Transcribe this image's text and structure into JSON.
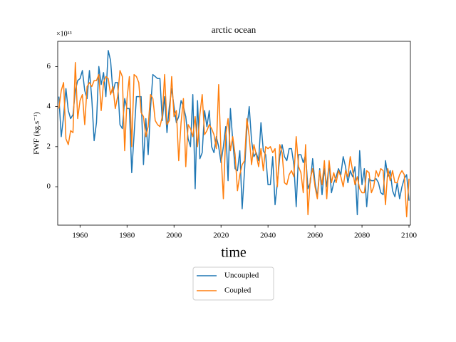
{
  "chart_data": {
    "type": "line",
    "title": "arctic ocean",
    "xlabel": "time",
    "ylabel": "FWF (kg.s⁻¹)",
    "y_offset_label": "×10¹³",
    "x": [
      1951,
      1952,
      1953,
      1954,
      1955,
      1956,
      1957,
      1958,
      1959,
      1960,
      1961,
      1962,
      1963,
      1964,
      1965,
      1966,
      1967,
      1968,
      1969,
      1970,
      1971,
      1972,
      1973,
      1974,
      1975,
      1976,
      1977,
      1978,
      1979,
      1980,
      1981,
      1982,
      1983,
      1984,
      1985,
      1986,
      1987,
      1988,
      1989,
      1990,
      1991,
      1992,
      1993,
      1994,
      1995,
      1996,
      1997,
      1998,
      1999,
      2000,
      2001,
      2002,
      2003,
      2004,
      2005,
      2006,
      2007,
      2008,
      2009,
      2010,
      2011,
      2012,
      2013,
      2014,
      2015,
      2016,
      2017,
      2018,
      2019,
      2020,
      2021,
      2022,
      2023,
      2024,
      2025,
      2026,
      2027,
      2028,
      2029,
      2030,
      2031,
      2032,
      2033,
      2034,
      2035,
      2036,
      2037,
      2038,
      2039,
      2040,
      2041,
      2042,
      2043,
      2044,
      2045,
      2046,
      2047,
      2048,
      2049,
      2050,
      2051,
      2052,
      2053,
      2054,
      2055,
      2056,
      2057,
      2058,
      2059,
      2060,
      2061,
      2062,
      2063,
      2064,
      2065,
      2066,
      2067,
      2068,
      2069,
      2070,
      2071,
      2072,
      2073,
      2074,
      2075,
      2076,
      2077,
      2078,
      2079,
      2080,
      2081,
      2082,
      2083,
      2084,
      2085,
      2086,
      2087,
      2088,
      2089,
      2090,
      2091,
      2092,
      2093,
      2094,
      2095,
      2096,
      2097,
      2098,
      2099,
      2100
    ],
    "series": [
      {
        "name": "Uncoupled",
        "color": "#1f77b4",
        "values": [
          4.5,
          2.5,
          3.5,
          4.9,
          3.8,
          3.4,
          3.6,
          4.8,
          5.3,
          5.4,
          5.8,
          4.8,
          4.4,
          5.8,
          4.4,
          2.3,
          3.2,
          6.0,
          5.1,
          5.7,
          4.5,
          6.8,
          6.3,
          4.7,
          5.2,
          5.2,
          3.1,
          2.9,
          4.4,
          3.9,
          3.9,
          0.7,
          2.6,
          4.5,
          4.5,
          4.5,
          1.1,
          3.4,
          1.6,
          3.9,
          5.6,
          5.5,
          5.4,
          5.4,
          3.3,
          4.5,
          2.7,
          4.0,
          4.9,
          4.0,
          3.2,
          3.5,
          4.3,
          4.0,
          3.5,
          2.4,
          2.0,
          4.6,
          -0.1,
          4.3,
          1.4,
          1.7,
          3.8,
          3.0,
          3.8,
          2.0,
          1.7,
          2.5,
          2.0,
          1.2,
          2.0,
          3.0,
          0.3,
          3.9,
          2.3,
          0.9,
          0.8,
          1.8,
          -1.1,
          0.8,
          2.9,
          4.0,
          2.3,
          1.5,
          1.7,
          1.3,
          3.2,
          1.8,
          1.6,
          0.1,
          0.1,
          1.5,
          -0.9,
          0.2,
          1.5,
          2.1,
          1.5,
          1.3,
          1.9,
          1.9,
          1.1,
          -1.0,
          1.6,
          1.6,
          1.2,
          1.6,
          -0.1,
          0.2,
          1.4,
          0.2,
          -0.5,
          0.9,
          -0.4,
          0.9,
          0.0,
          1.2,
          -0.3,
          0.2,
          0.5,
          0.9,
          0.6,
          1.5,
          1.0,
          0.2,
          0.8,
          0.5,
          1.0,
          -1.4,
          1.8,
          0.1,
          0.9,
          -1.0,
          0.4,
          0.3,
          0.3,
          0.4,
          0.2,
          -0.3,
          -0.4,
          1.3,
          0.5,
          0.8,
          -0.2,
          -0.5,
          0.2,
          -0.6,
          0.0,
          0.4,
          0.6,
          -0.7
        ]
      },
      {
        "name": "Coupled",
        "color": "#ff7f0e",
        "values": [
          3.9,
          4.8,
          5.2,
          2.4,
          2.1,
          2.8,
          2.7,
          6.2,
          3.4,
          4.3,
          4.6,
          3.1,
          5.0,
          5.2,
          5.0,
          5.3,
          5.3,
          5.6,
          3.8,
          5.2,
          5.5,
          5.4,
          4.6,
          5.0,
          3.9,
          4.5,
          5.8,
          5.5,
          1.8,
          4.4,
          5.5,
          2.0,
          5.6,
          5.5,
          5.2,
          3.7,
          3.5,
          2.5,
          3.0,
          4.6,
          4.4,
          3.3,
          3.1,
          3.0,
          3.5,
          5.6,
          3.1,
          3.3,
          5.5,
          3.5,
          3.8,
          1.3,
          3.2,
          4.4,
          1.0,
          3.1,
          2.9,
          2.5,
          3.5,
          2.0,
          3.6,
          4.6,
          2.6,
          2.8,
          3.1,
          2.9,
          2.6,
          1.9,
          5.1,
          1.7,
          -0.6,
          2.6,
          3.4,
          1.8,
          2.5,
          1.6,
          -0.2,
          0.6,
          1.1,
          1.3,
          3.4,
          2.5,
          1.1,
          2.1,
          1.6,
          1.0,
          1.9,
          0.8,
          2.0,
          1.9,
          2.0,
          1.7,
          1.9,
          0.0,
          2.1,
          1.7,
          0.2,
          0.1,
          0.6,
          0.8,
          0.5,
          2.5,
          1.0,
          0.7,
          -0.3,
          2.1,
          -1.4,
          0.4,
          0.9,
          0.0,
          -0.6,
          0.8,
          0.1,
          1.3,
          -0.6,
          1.3,
          0.2,
          0.7,
          0.2,
          0.8,
          0.5,
          0.0,
          0.8,
          0.5,
          1.5,
          0.8,
          0.1,
          0.5,
          -0.1,
          -0.3,
          -0.3,
          0.8,
          0.7,
          -0.3,
          0.0,
          0.8,
          0.5,
          0.9,
          0.8,
          -0.9,
          0.9,
          0.3,
          0.8,
          0.2,
          0.2,
          0.6,
          0.8,
          0.6,
          -1.5,
          0.4
        ]
      }
    ],
    "xlim": [
      1950.5,
      2100.6
    ],
    "xticks": [
      1960,
      1980,
      2000,
      2020,
      2040,
      2060,
      2080,
      2100
    ],
    "ylim": [
      -1.92,
      7.26
    ],
    "yticks": [
      0,
      2,
      4,
      6
    ],
    "grid": false,
    "legend": "lower center outside"
  }
}
